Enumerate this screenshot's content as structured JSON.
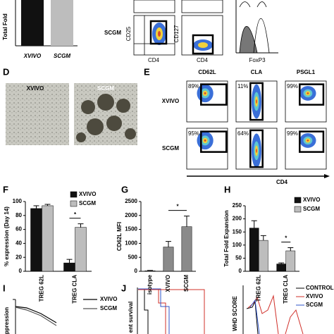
{
  "figure": {
    "panel_labels": [
      "D",
      "E",
      "F",
      "G",
      "H",
      "I",
      "J"
    ],
    "a": {
      "y_label": "Total Fold",
      "categories": [
        "XVIVO",
        "SCGM"
      ]
    },
    "b": {
      "row_label": "SCGM",
      "x_label_1": "CD4",
      "y_label_1": "CD25",
      "x_label_2": "CD4",
      "y_label_2": "CD127",
      "x_label_3": "FoxP3"
    },
    "d": {
      "images": [
        "XVIVO",
        "SCGM"
      ]
    },
    "e": {
      "columns": [
        "CD62L",
        "CLA",
        "PSGL1"
      ],
      "rows": [
        "XVIVO",
        "SCGM"
      ],
      "percents": [
        [
          "89%",
          "11%",
          "99%"
        ],
        [
          "95%",
          "64%",
          "99%"
        ]
      ],
      "x_label": "CD4"
    },
    "i": {
      "legend": [
        "XVIVO",
        "SCGM"
      ],
      "y_label": "ppression"
    },
    "j": {
      "y_label": "ent survival"
    },
    "k": {
      "y_label": "WHD SCORE",
      "legend": [
        "CONTROL",
        "XVIVO",
        "SCGM"
      ]
    }
  },
  "chart_data": [
    {
      "type": "bar",
      "y_label": "% expression (Day 14)",
      "categories": [
        "TREG 62L",
        "TREG CLA"
      ],
      "series": [
        {
          "name": "XVIVO",
          "color": "#111111",
          "values": [
            90,
            12
          ],
          "errors": [
            4,
            5
          ]
        },
        {
          "name": "SCGM",
          "color": "#bdbdbd",
          "values": [
            94,
            63
          ],
          "errors": [
            2,
            5
          ]
        }
      ],
      "ylim": [
        0,
        100
      ],
      "yticks": [
        0,
        20,
        40,
        60,
        80,
        100
      ],
      "annotation": "*"
    },
    {
      "type": "bar",
      "y_label": "CD62L MFI",
      "categories": [
        "isotype",
        "XVIVO",
        "SCGM"
      ],
      "series": [
        {
          "color": "#8a8a8a",
          "values": [
            20,
            870,
            1600
          ],
          "errors": [
            10,
            200,
            380
          ]
        }
      ],
      "ylim": [
        0,
        2500
      ],
      "yticks": [
        0,
        500,
        1000,
        1500,
        2000,
        2500
      ],
      "annotation": "*"
    },
    {
      "type": "bar",
      "y_label": "Total Fold Expansion",
      "categories": [
        "TREG 62L",
        "TREG CLA"
      ],
      "series": [
        {
          "name": "XVIVO",
          "color": "#111111",
          "values": [
            165,
            28
          ],
          "errors": [
            28,
            4
          ]
        },
        {
          "name": "SCGM",
          "color": "#bdbdbd",
          "values": [
            118,
            78
          ],
          "errors": [
            18,
            12
          ]
        }
      ],
      "ylim": [
        0,
        250
      ],
      "yticks": [
        0,
        50,
        100,
        150,
        200,
        250
      ],
      "annotation": "*"
    }
  ]
}
